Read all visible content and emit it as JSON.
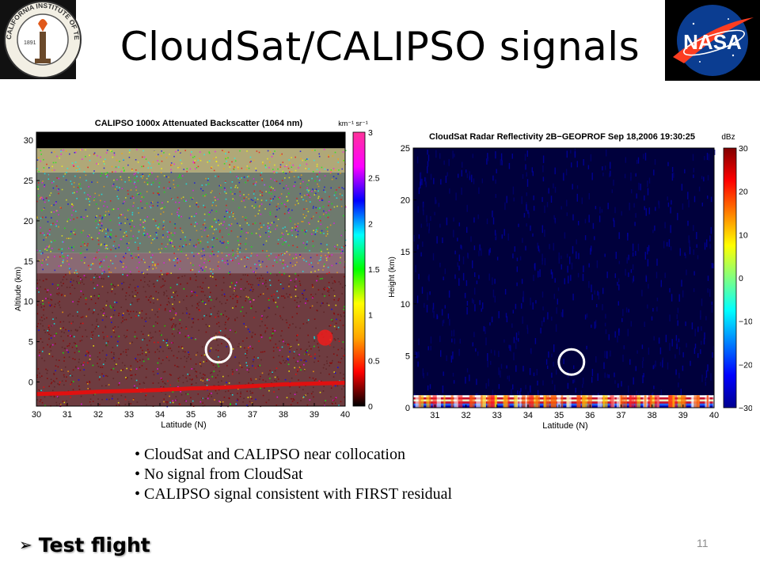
{
  "slide": {
    "title": "CloudSat/CALIPSO signals",
    "page_number": "11",
    "bullets": [
      "CloudSat and CALIPSO near collocation",
      "No signal from CloudSat",
      "CALIPSO signal consistent with FIRST residual"
    ],
    "footer_heading": "Test flight",
    "caltech_logo": {
      "text": "CALIFORNIA INSTITUTE OF TECHNOLOGY",
      "year": "1891"
    },
    "nasa_logo": {
      "text": "NASA"
    }
  },
  "chart_data": [
    {
      "type": "heatmap",
      "title": "CALIPSO 1000x Attenuated Backscatter (1064 nm)",
      "xlabel": "Latitude (N)",
      "ylabel": "Altitude (km)",
      "xlim": [
        30,
        40
      ],
      "ylim": [
        -3,
        31
      ],
      "xticks": [
        "30",
        "31",
        "32",
        "33",
        "34",
        "35",
        "36",
        "37",
        "38",
        "39",
        "40"
      ],
      "yticks": [
        "0",
        "5",
        "10",
        "15",
        "20",
        "25",
        "30"
      ],
      "colorbar": {
        "label": "km⁻¹ sr⁻¹",
        "range": [
          0,
          3
        ],
        "ticks": [
          "0",
          "0.5",
          "1",
          "1.5",
          "2",
          "2.5",
          "3"
        ],
        "colors": [
          "#000000",
          "#ff0000",
          "#ffa500",
          "#ffff00",
          "#00ff00",
          "#00ffff",
          "#0000ff",
          "#ff00ff",
          "#ff3399"
        ]
      },
      "layers": [
        {
          "from": 29,
          "to": 31,
          "value": 0
        },
        {
          "from": 26,
          "to": 29,
          "value": 1.0
        },
        {
          "from": 16,
          "to": 26,
          "value": 0.9
        },
        {
          "from": 13.5,
          "to": 16,
          "value": 0.85
        },
        {
          "from": -3,
          "to": 13.5,
          "value": 0.3
        }
      ],
      "surface_signal": {
        "lat": [
          30,
          31,
          32,
          33,
          34,
          35,
          36,
          37,
          38,
          39,
          40
        ],
        "alt": [
          -1.5,
          -1.4,
          -1.2,
          -1.1,
          -1.0,
          -0.8,
          -0.7,
          -0.5,
          -0.3,
          -0.2,
          -0.1
        ]
      },
      "cloud_feature": {
        "lat": [
          39.1,
          39.6
        ],
        "alt": [
          4.5,
          6.5
        ]
      },
      "annotation_circle": {
        "lat": 35.9,
        "alt": 4
      }
    },
    {
      "type": "heatmap",
      "title": "CloudSat Radar Reflectivity 2B−GEOPROF Sep 18,2006 19:30:25",
      "xlabel": "Latitude (N)",
      "ylabel": "Height (km)",
      "xlim": [
        30.3,
        40
      ],
      "ylim": [
        0,
        25
      ],
      "xticks": [
        "31",
        "32",
        "33",
        "34",
        "35",
        "36",
        "37",
        "38",
        "39",
        "40"
      ],
      "yticks": [
        "0",
        "5",
        "10",
        "15",
        "20",
        "25"
      ],
      "colorbar": {
        "label": "dBz",
        "range": [
          -30,
          30
        ],
        "ticks": [
          "−30",
          "−20",
          "−10",
          "0",
          "10",
          "20",
          "30"
        ],
        "colors": [
          "#00008f",
          "#0000ff",
          "#0080ff",
          "#00ffff",
          "#80ff80",
          "#ffff00",
          "#ff8000",
          "#ff0000",
          "#800000"
        ]
      },
      "surface_band": {
        "from": 0,
        "to": 1.2
      },
      "annotation_circle": {
        "lat": 35.4,
        "alt": 4.4
      }
    }
  ]
}
